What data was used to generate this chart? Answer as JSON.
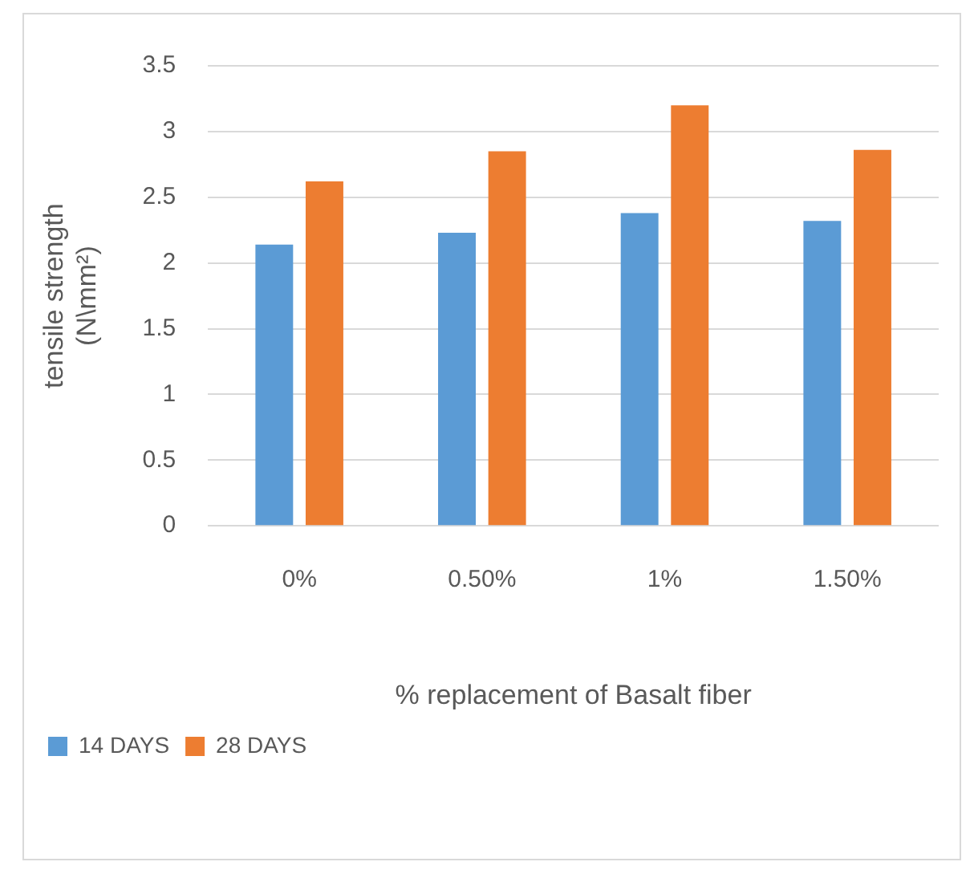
{
  "chart_data": {
    "type": "bar",
    "xlabel": "% replacement of Basalt fiber",
    "ylabel": "tensile strength\n(N\\mm²)",
    "categories": [
      "0%",
      "0.50%",
      "1%",
      "1.50%"
    ],
    "series": [
      {
        "name": "14 DAYS",
        "color": "#5b9bd5",
        "values": [
          2.14,
          2.23,
          2.38,
          2.32
        ]
      },
      {
        "name": "28 DAYS",
        "color": "#ed7d31",
        "values": [
          2.62,
          2.85,
          3.2,
          2.86
        ]
      }
    ],
    "ylim": [
      0,
      3.5
    ],
    "yticks": [
      0,
      0.5,
      1,
      1.5,
      2,
      2.5,
      3,
      3.5
    ],
    "grid": "y",
    "legend": "bottom left"
  }
}
